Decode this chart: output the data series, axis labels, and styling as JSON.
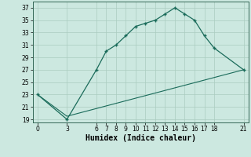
{
  "xlabel": "Humidex (Indice chaleur)",
  "bg_color": "#cce8e0",
  "grid_color": "#aaccbf",
  "line_color": "#1a6b5a",
  "curve1_x": [
    0,
    3,
    6,
    7,
    8,
    9,
    10,
    11,
    12,
    13,
    14,
    15,
    16,
    17,
    18,
    21
  ],
  "curve1_y": [
    23,
    19,
    27,
    30,
    31,
    32.5,
    34,
    34.5,
    35,
    36,
    37,
    36,
    35,
    32.5,
    30.5,
    27
  ],
  "curve2_x": [
    0,
    3,
    21
  ],
  "curve2_y": [
    23,
    19.5,
    27
  ],
  "xlim": [
    -0.5,
    21.5
  ],
  "ylim": [
    18.5,
    38
  ],
  "xticks": [
    0,
    3,
    6,
    7,
    8,
    9,
    10,
    11,
    12,
    13,
    14,
    15,
    16,
    17,
    18,
    21
  ],
  "yticks": [
    19,
    21,
    23,
    25,
    27,
    29,
    31,
    33,
    35,
    37
  ],
  "tick_fontsize": 5.5,
  "label_fontsize": 7.0
}
